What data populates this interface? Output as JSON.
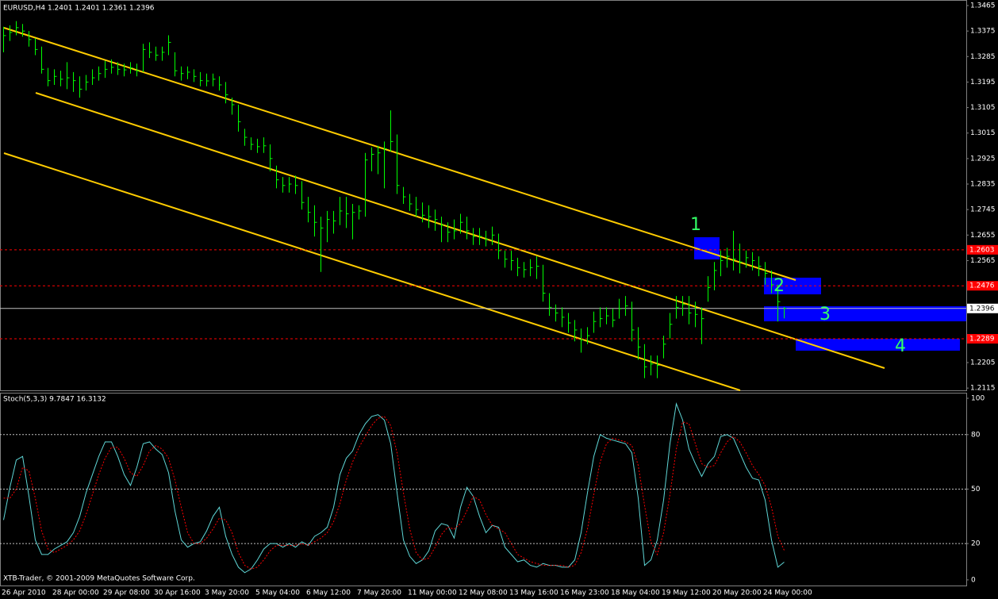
{
  "chart_data": [
    {
      "type": "ohlc",
      "title": "EURUSD,H4  1.2401 1.2401 1.2361 1.2396",
      "footer": "XTB-Trader, © 2001-2009 MetaQuotes Software Corp.",
      "categories": [
        "26 Apr 2010",
        null,
        null,
        null,
        null,
        null,
        null,
        null,
        "28 Apr 00:00",
        null,
        null,
        null,
        null,
        null,
        null,
        null,
        "29 Apr 08:00",
        null,
        null,
        null,
        null,
        null,
        null,
        null,
        "30 Apr 16:00",
        null,
        null,
        null,
        null,
        null,
        null,
        null,
        "3 May 20:00",
        null,
        null,
        null,
        null,
        null,
        null,
        null,
        "5 May 04:00",
        null,
        null,
        null,
        null,
        null,
        null,
        null,
        "6 May 12:00",
        null,
        null,
        null,
        null,
        null,
        null,
        null,
        "7 May 20:00",
        null,
        null,
        null,
        null,
        null,
        null,
        null,
        "11 May 00:00",
        null,
        null,
        null,
        null,
        null,
        null,
        null,
        "12 May 08:00",
        null,
        null,
        null,
        null,
        null,
        null,
        null,
        "13 May 16:00",
        null,
        null,
        null,
        null,
        null,
        null,
        null,
        "16 May 23:00",
        null,
        null,
        null,
        null,
        null,
        null,
        null,
        "18 May 04:00",
        null,
        null,
        null,
        null,
        null,
        null,
        null,
        "19 May 12:00",
        null,
        null,
        null,
        null,
        null,
        null,
        null,
        "20 May 20:00",
        null,
        null,
        null,
        null,
        null,
        null,
        null,
        "24 May 00:00",
        null,
        null,
        null
      ],
      "high": [
        1.339,
        1.3395,
        1.341,
        1.34,
        1.3375,
        1.335,
        1.332,
        1.3245,
        1.324,
        1.3235,
        1.3265,
        1.323,
        1.3215,
        1.322,
        1.324,
        1.325,
        1.327,
        1.3275,
        1.3265,
        1.326,
        1.3265,
        1.326,
        1.333,
        1.3335,
        1.332,
        1.332,
        1.336,
        1.33,
        1.325,
        1.325,
        1.324,
        1.323,
        1.3225,
        1.3225,
        1.3215,
        1.3195,
        1.314,
        1.3115,
        1.303,
        1.3,
        1.2995,
        1.3,
        1.2975,
        1.29,
        1.286,
        1.286,
        1.2865,
        1.2845,
        1.279,
        1.276,
        1.272,
        1.274,
        1.274,
        1.279,
        1.279,
        1.2765,
        1.276,
        1.2945,
        1.2965,
        1.297,
        1.2985,
        1.3095,
        1.301,
        1.2825,
        1.28,
        1.279,
        1.277,
        1.276,
        1.2745,
        1.272,
        1.27,
        1.271,
        1.273,
        1.272,
        1.268,
        1.268,
        1.267,
        1.2685,
        1.266,
        1.26,
        1.26,
        1.2575,
        1.256,
        1.257,
        1.258,
        1.255,
        1.245,
        1.241,
        1.24,
        1.238,
        1.2355,
        1.2325,
        1.233,
        1.2385,
        1.24,
        1.24,
        1.2395,
        1.243,
        1.244,
        1.242,
        1.233,
        1.227,
        1.223,
        1.223,
        1.23,
        1.238,
        1.244,
        1.244,
        1.244,
        1.242,
        1.24,
        1.251,
        1.256,
        1.26,
        1.261,
        1.267,
        1.2625,
        1.26,
        1.2595,
        1.258,
        1.256,
        1.253,
        1.248,
        1.2401
      ],
      "low": [
        1.33,
        1.334,
        1.336,
        1.3355,
        1.332,
        1.329,
        1.3225,
        1.318,
        1.3185,
        1.318,
        1.317,
        1.316,
        1.314,
        1.3165,
        1.3185,
        1.32,
        1.321,
        1.3225,
        1.322,
        1.3215,
        1.3225,
        1.3215,
        1.323,
        1.328,
        1.327,
        1.327,
        1.329,
        1.3215,
        1.32,
        1.3205,
        1.3195,
        1.318,
        1.318,
        1.318,
        1.3165,
        1.312,
        1.308,
        1.302,
        1.297,
        1.2955,
        1.2945,
        1.2945,
        1.288,
        1.282,
        1.2805,
        1.2805,
        1.28,
        1.2745,
        1.27,
        1.265,
        1.2525,
        1.263,
        1.266,
        1.269,
        1.268,
        1.264,
        1.271,
        1.272,
        1.288,
        1.287,
        1.282,
        1.295,
        1.28,
        1.2765,
        1.274,
        1.272,
        1.27,
        1.268,
        1.267,
        1.263,
        1.263,
        1.264,
        1.266,
        1.264,
        1.262,
        1.262,
        1.2615,
        1.262,
        1.257,
        1.254,
        1.253,
        1.251,
        1.2505,
        1.251,
        1.25,
        1.242,
        1.237,
        1.235,
        1.233,
        1.231,
        1.228,
        1.224,
        1.227,
        1.231,
        1.233,
        1.234,
        1.233,
        1.236,
        1.237,
        1.228,
        1.2215,
        1.215,
        1.216,
        1.215,
        1.222,
        1.229,
        1.236,
        1.237,
        1.234,
        1.233,
        1.227,
        1.242,
        1.246,
        1.251,
        1.254,
        1.253,
        1.252,
        1.254,
        1.253,
        1.251,
        1.248,
        1.245,
        1.235,
        1.2361
      ],
      "close": [
        1.3359,
        1.337,
        1.3387,
        1.3375,
        1.3345,
        1.331,
        1.324,
        1.32,
        1.3215,
        1.3205,
        1.321,
        1.32,
        1.317,
        1.3195,
        1.321,
        1.3225,
        1.324,
        1.3247,
        1.324,
        1.3238,
        1.3245,
        1.3235,
        1.331,
        1.33,
        1.329,
        1.33,
        1.3335,
        1.3235,
        1.3225,
        1.323,
        1.3215,
        1.32,
        1.3199,
        1.3205,
        1.3185,
        1.315,
        1.3115,
        1.3055,
        1.3,
        1.2975,
        1.2967,
        1.297,
        1.2925,
        1.285,
        1.283,
        1.2835,
        1.283,
        1.277,
        1.2735,
        1.27,
        1.268,
        1.271,
        1.2705,
        1.274,
        1.273,
        1.2735,
        1.274,
        1.292,
        1.294,
        1.2945,
        1.296,
        1.2985,
        1.283,
        1.279,
        1.2765,
        1.2745,
        1.2725,
        1.272,
        1.271,
        1.269,
        1.2665,
        1.267,
        1.27,
        1.267,
        1.265,
        1.265,
        1.264,
        1.2655,
        1.26,
        1.257,
        1.2565,
        1.254,
        1.2533,
        1.254,
        1.2545,
        1.245,
        1.24,
        1.238,
        1.2365,
        1.2345,
        1.232,
        1.2285,
        1.23,
        1.235,
        1.236,
        1.237,
        1.2355,
        1.2395,
        1.2405,
        1.232,
        1.226,
        1.219,
        1.22,
        1.2195,
        1.227,
        1.234,
        1.24,
        1.241,
        1.238,
        1.2375,
        1.236,
        1.247,
        1.253,
        1.2565,
        1.258,
        1.257,
        1.256,
        1.2575,
        1.2565,
        1.2545,
        1.252,
        1.248,
        1.242,
        1.2396
      ],
      "color": "#00ff00",
      "ylim": [
        1.2107,
        1.3479
      ],
      "yticks": [
        1.3465,
        1.3375,
        1.3285,
        1.3195,
        1.3105,
        1.3015,
        1.2925,
        1.2835,
        1.2745,
        1.2655,
        1.2565,
        1.2205,
        1.2115
      ],
      "levels": [
        1.2603,
        1.2476,
        1.2289
      ],
      "level_color": "#ff0000",
      "last_price": 1.2396,
      "annotations": [
        "1",
        "2",
        "3",
        "4"
      ]
    },
    {
      "type": "line",
      "title": "Stoch(5,3,3) 9.7847 16.3132",
      "series": [
        {
          "color": "#5fd7d7",
          "values": [
            33,
            51,
            66,
            68,
            46,
            22,
            14,
            14,
            17,
            19,
            21,
            26,
            35,
            48,
            58,
            68,
            76,
            76,
            68,
            58,
            52,
            62,
            75,
            76,
            72,
            69,
            59,
            38,
            22,
            18,
            20,
            21,
            27,
            35,
            40,
            24,
            14,
            7,
            4,
            6,
            11,
            17,
            20,
            20,
            18,
            20,
            18,
            21,
            19,
            24,
            26,
            29,
            40,
            58,
            67,
            71,
            80,
            86,
            90,
            91,
            88,
            75,
            48,
            22,
            13,
            9,
            11,
            16,
            27,
            31,
            30,
            23,
            40,
            51,
            46,
            35,
            26,
            30,
            29,
            18,
            14,
            10,
            11,
            8,
            7,
            9,
            8,
            8,
            7,
            7,
            11,
            26,
            48,
            68,
            80,
            78,
            77,
            76,
            75,
            70,
            45,
            8,
            11,
            22,
            44,
            75,
            97,
            88,
            72,
            64,
            57,
            64,
            68,
            79,
            80,
            78,
            70,
            62,
            56,
            55,
            44,
            22,
            7,
            9.7847
          ]
        },
        {
          "color": "#ff0000",
          "dash": true,
          "values": [
            45,
            45,
            50,
            62,
            60,
            45,
            27,
            17,
            15,
            17,
            19,
            22,
            27,
            36,
            47,
            58,
            67,
            73,
            73,
            67,
            59,
            57,
            63,
            71,
            74,
            72,
            67,
            55,
            40,
            26,
            20,
            20,
            23,
            28,
            34,
            33,
            26,
            15,
            8,
            6,
            7,
            11,
            16,
            19,
            19,
            19,
            19,
            20,
            19,
            21,
            23,
            26,
            32,
            42,
            55,
            65,
            73,
            79,
            85,
            89,
            90,
            85,
            70,
            48,
            28,
            15,
            11,
            12,
            18,
            25,
            29,
            28,
            31,
            38,
            46,
            44,
            36,
            30,
            28,
            26,
            20,
            14,
            12,
            10,
            9,
            8,
            8,
            8,
            8,
            7,
            8,
            15,
            28,
            47,
            65,
            75,
            78,
            77,
            76,
            74,
            63,
            41,
            21,
            14,
            26,
            47,
            72,
            87,
            86,
            75,
            64,
            62,
            63,
            70,
            76,
            79,
            76,
            70,
            63,
            58,
            52,
            40,
            24,
            16.3132
          ]
        }
      ],
      "ylim": [
        -3.1,
        102.2
      ],
      "yticks": [
        100,
        80,
        50,
        20,
        0
      ],
      "levels": [
        80,
        50,
        20
      ]
    }
  ]
}
